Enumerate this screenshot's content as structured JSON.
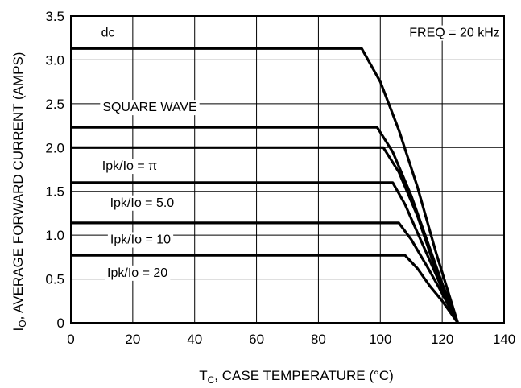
{
  "chart_data": {
    "type": "line",
    "title": "",
    "xlabel": "CASE TEMPERATURE (°C)",
    "xlabel_symbol": "T",
    "xlabel_subscript": "C",
    "ylabel": "AVERAGE FORWARD CURRENT (AMPS)",
    "ylabel_symbol": "I",
    "ylabel_subscript": "O",
    "xlim": [
      0,
      140
    ],
    "ylim": [
      0,
      3.5
    ],
    "x_ticks": [
      "0",
      "20",
      "40",
      "60",
      "80",
      "100",
      "120",
      "140"
    ],
    "y_ticks": [
      "0",
      "0.5",
      "1.0",
      "1.5",
      "2.0",
      "2.5",
      "3.0",
      "3.5"
    ],
    "grid": true,
    "annotations": {
      "dc": "dc",
      "freq": "FREQ = 20 kHz",
      "square": "SQUARE WAVE",
      "pi": "Ipk/Io = π",
      "r5": "Ipk/Io = 5.0",
      "r10": "Ipk/Io = 10",
      "r20": "Ipk/Io = 20"
    },
    "series": [
      {
        "label": "dc",
        "points": [
          [
            0,
            3.13
          ],
          [
            94,
            3.13
          ],
          [
            100,
            2.75
          ],
          [
            106,
            2.2
          ],
          [
            112,
            1.55
          ],
          [
            118,
            0.8
          ],
          [
            125,
            0
          ]
        ]
      },
      {
        "label": "SQUARE WAVE",
        "points": [
          [
            0,
            2.23
          ],
          [
            99,
            2.23
          ],
          [
            104,
            1.95
          ],
          [
            110,
            1.45
          ],
          [
            116,
            0.85
          ],
          [
            120,
            0.45
          ],
          [
            125,
            0
          ]
        ]
      },
      {
        "label": "Ipk/Io = π",
        "points": [
          [
            0,
            2.0
          ],
          [
            101,
            2.0
          ],
          [
            106,
            1.72
          ],
          [
            112,
            1.22
          ],
          [
            117,
            0.7
          ],
          [
            121,
            0.35
          ],
          [
            125,
            0
          ]
        ]
      },
      {
        "label": "Ipk/Io = 5.0",
        "points": [
          [
            0,
            1.6
          ],
          [
            104,
            1.6
          ],
          [
            108,
            1.35
          ],
          [
            113,
            0.95
          ],
          [
            118,
            0.55
          ],
          [
            121,
            0.3
          ],
          [
            125,
            0
          ]
        ]
      },
      {
        "label": "Ipk/Io = 10",
        "points": [
          [
            0,
            1.14
          ],
          [
            106,
            1.14
          ],
          [
            110,
            0.95
          ],
          [
            115,
            0.65
          ],
          [
            119,
            0.4
          ],
          [
            122,
            0.2
          ],
          [
            125,
            0
          ]
        ]
      },
      {
        "label": "Ipk/Io = 20",
        "points": [
          [
            0,
            0.77
          ],
          [
            108,
            0.77
          ],
          [
            112,
            0.62
          ],
          [
            116,
            0.42
          ],
          [
            120,
            0.25
          ],
          [
            123,
            0.1
          ],
          [
            125,
            0
          ]
        ]
      }
    ]
  }
}
